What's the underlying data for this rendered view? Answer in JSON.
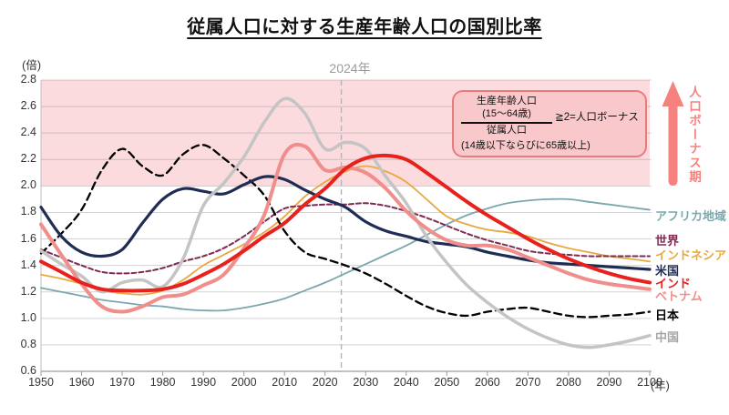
{
  "title": "従属人口に対する生産年齢人口の国別比率",
  "axis": {
    "y_unit": "(倍)",
    "x_unit": "(年)"
  },
  "reference_line": {
    "year": 2024,
    "label": "2024年"
  },
  "bonus_arrow_label": "人口ボーナス期",
  "annotation": {
    "numerator": "生産年齢人口",
    "numerator_sub": "(15〜64歳)",
    "denominator": "従属人口",
    "denominator_sub": "(14歳以下ならびに65歳以上)",
    "condition": "≧2=人口ボーナス"
  },
  "colors": {
    "title": "#111111",
    "grid": "#A8A8A8",
    "axis": "#9C9C9C",
    "tick_label": "#333333",
    "ref_line": "#B5B5B5",
    "ref_label": "#9B9B9B",
    "bonus_band": "#FBDBDE",
    "annotation_bg": "#F9C8CB",
    "annotation_border": "#E97B7B",
    "arrow": "#F5827F"
  },
  "chart_data": {
    "type": "line",
    "title": "従属人口に対する生産年齢人口の国別比率",
    "xlabel": "(年)",
    "ylabel": "(倍)",
    "xlim": [
      1950,
      2100
    ],
    "ylim": [
      0.6,
      2.8
    ],
    "x_ticks": [
      1950,
      1960,
      1970,
      1980,
      1990,
      2000,
      2010,
      2020,
      2030,
      2040,
      2050,
      2060,
      2070,
      2080,
      2090,
      2100
    ],
    "y_ticks": [
      0.6,
      0.8,
      1.0,
      1.2,
      1.4,
      1.6,
      1.8,
      2.0,
      2.2,
      2.4,
      2.6,
      2.8
    ],
    "grid": true,
    "legend_position": "right",
    "bonus_band": {
      "from": 2.0,
      "to": 2.8
    },
    "reference_year": 2024,
    "x": [
      1950,
      1955,
      1960,
      1965,
      1970,
      1975,
      1980,
      1985,
      1990,
      1995,
      2000,
      2005,
      2010,
      2015,
      2020,
      2025,
      2030,
      2035,
      2040,
      2045,
      2050,
      2055,
      2060,
      2065,
      2070,
      2075,
      2080,
      2085,
      2090,
      2095,
      2100
    ],
    "series": [
      {
        "key": "africa",
        "name": "アフリカ地域",
        "color": "#7BA7AE",
        "width": 1.8,
        "dash": null,
        "label_v": 1.78,
        "values": [
          1.23,
          1.2,
          1.17,
          1.14,
          1.12,
          1.1,
          1.09,
          1.07,
          1.06,
          1.06,
          1.08,
          1.11,
          1.15,
          1.21,
          1.27,
          1.34,
          1.41,
          1.48,
          1.55,
          1.63,
          1.71,
          1.78,
          1.83,
          1.87,
          1.89,
          1.9,
          1.9,
          1.88,
          1.86,
          1.84,
          1.82
        ]
      },
      {
        "key": "world",
        "name": "世界",
        "color": "#7E2A52",
        "width": 2,
        "dash": [
          5,
          3
        ],
        "label_v": 1.6,
        "values": [
          1.52,
          1.46,
          1.4,
          1.35,
          1.34,
          1.35,
          1.38,
          1.43,
          1.47,
          1.53,
          1.62,
          1.73,
          1.83,
          1.85,
          1.86,
          1.86,
          1.87,
          1.85,
          1.81,
          1.76,
          1.7,
          1.64,
          1.59,
          1.55,
          1.51,
          1.49,
          1.48,
          1.47,
          1.47,
          1.47,
          1.47
        ]
      },
      {
        "key": "indonesia",
        "name": "インドネシア",
        "color": "#E9A83F",
        "width": 1.8,
        "dash": null,
        "label_v": 1.49,
        "values": [
          1.33,
          1.3,
          1.26,
          1.21,
          1.19,
          1.18,
          1.21,
          1.29,
          1.4,
          1.48,
          1.56,
          1.65,
          1.77,
          1.92,
          2.03,
          2.11,
          2.15,
          2.11,
          2.03,
          1.9,
          1.77,
          1.71,
          1.67,
          1.65,
          1.62,
          1.57,
          1.53,
          1.5,
          1.47,
          1.45,
          1.43
        ]
      },
      {
        "key": "us",
        "name": "米国",
        "color": "#1F2C54",
        "width": 3.2,
        "dash": null,
        "label_v": 1.37,
        "values": [
          1.84,
          1.62,
          1.5,
          1.47,
          1.52,
          1.72,
          1.9,
          1.98,
          1.96,
          1.94,
          2.01,
          2.07,
          2.05,
          1.97,
          1.9,
          1.84,
          1.73,
          1.66,
          1.62,
          1.58,
          1.56,
          1.54,
          1.5,
          1.47,
          1.44,
          1.42,
          1.41,
          1.4,
          1.39,
          1.38,
          1.37
        ]
      },
      {
        "key": "india",
        "name": "インド",
        "color": "#E8211D",
        "width": 4,
        "dash": null,
        "label_v": 1.275,
        "values": [
          1.43,
          1.35,
          1.27,
          1.22,
          1.21,
          1.21,
          1.22,
          1.26,
          1.33,
          1.41,
          1.51,
          1.62,
          1.72,
          1.86,
          1.98,
          2.13,
          2.21,
          2.23,
          2.2,
          2.1,
          1.99,
          1.88,
          1.78,
          1.69,
          1.6,
          1.52,
          1.45,
          1.39,
          1.34,
          1.3,
          1.27
        ]
      },
      {
        "key": "vietnam",
        "name": "ベトナム",
        "color": "#EF8E8B",
        "width": 4,
        "dash": null,
        "label_v": 1.175,
        "values": [
          1.71,
          1.48,
          1.26,
          1.09,
          1.05,
          1.09,
          1.16,
          1.18,
          1.25,
          1.33,
          1.53,
          1.78,
          2.24,
          2.3,
          2.12,
          2.14,
          2.1,
          1.98,
          1.81,
          1.68,
          1.59,
          1.55,
          1.55,
          1.52,
          1.46,
          1.4,
          1.34,
          1.29,
          1.26,
          1.24,
          1.22
        ]
      },
      {
        "key": "japan",
        "name": "日本",
        "color": "#000000",
        "width": 2.3,
        "dash": [
          8,
          5
        ],
        "label_v": 1.035,
        "values": [
          1.49,
          1.64,
          1.82,
          2.12,
          2.28,
          2.15,
          2.08,
          2.24,
          2.31,
          2.21,
          2.08,
          1.93,
          1.66,
          1.5,
          1.45,
          1.4,
          1.34,
          1.26,
          1.17,
          1.09,
          1.04,
          1.02,
          1.05,
          1.07,
          1.08,
          1.05,
          1.02,
          1.01,
          1.02,
          1.03,
          1.05
        ]
      },
      {
        "key": "china",
        "name": "中国",
        "color": "#C5C4C4",
        "width": 3.5,
        "dash": null,
        "label_v": 0.865,
        "label_color": "#A5A5A5",
        "values": [
          1.51,
          1.41,
          1.32,
          1.2,
          1.27,
          1.29,
          1.24,
          1.45,
          1.85,
          2.02,
          2.22,
          2.48,
          2.66,
          2.55,
          2.28,
          2.33,
          2.28,
          2.07,
          1.87,
          1.62,
          1.42,
          1.25,
          1.12,
          1.01,
          0.92,
          0.85,
          0.8,
          0.78,
          0.8,
          0.83,
          0.87
        ]
      }
    ]
  }
}
